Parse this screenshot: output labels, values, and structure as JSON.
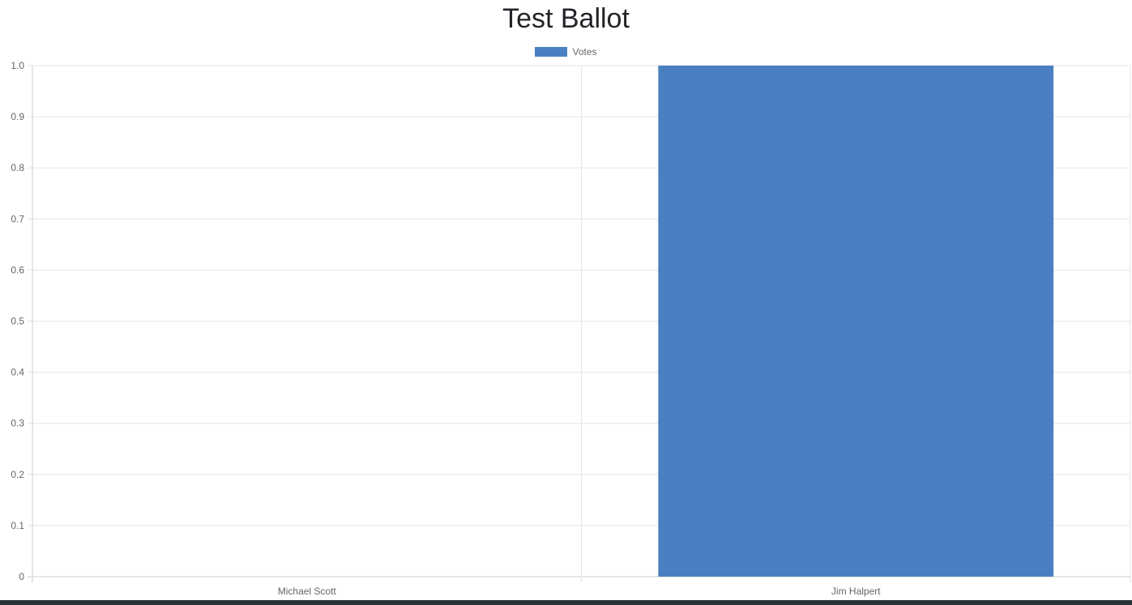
{
  "title": "Test Ballot",
  "colors": {
    "bar": "#4a80c1",
    "grid": "#e5e5e5",
    "axis": "#cfcfcf",
    "bottom_bar": "#263238"
  },
  "chart_data": {
    "type": "bar",
    "title": "Test Ballot",
    "categories": [
      "Michael Scott",
      "Jim Halpert"
    ],
    "series": [
      {
        "name": "Votes",
        "values": [
          0,
          1
        ]
      }
    ],
    "xlabel": "",
    "ylabel": "",
    "ylim": [
      0,
      1.0
    ],
    "yticks": [
      "0",
      "0.1",
      "0.2",
      "0.3",
      "0.4",
      "0.5",
      "0.6",
      "0.7",
      "0.8",
      "0.9",
      "1.0"
    ],
    "grid": true,
    "legend_position": "top-center"
  }
}
